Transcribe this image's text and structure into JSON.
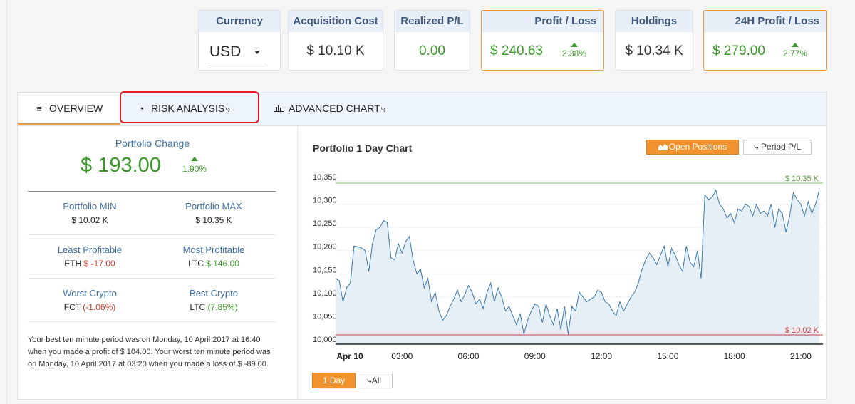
{
  "stats": {
    "currency": {
      "label": "Currency",
      "value": "USD"
    },
    "acquisition_cost": {
      "label": "Acquisition Cost",
      "value": "$ 10.10 K"
    },
    "realized_pl": {
      "label": "Realized P/L",
      "value": "0.00"
    },
    "profit_loss": {
      "label": "Profit / Loss",
      "value": "$ 240.63",
      "pct": "2.38%"
    },
    "holdings": {
      "label": "Holdings",
      "value": "$ 10.34 K"
    },
    "profit_loss_24h": {
      "label": "24H Profit / Loss",
      "value": "$ 279.00",
      "pct": "2.77%"
    }
  },
  "tabs": {
    "overview": "OVERVIEW",
    "risk": "RISK ANALYSIS",
    "advanced": "ADVANCED CHART"
  },
  "overview": {
    "change_label": "Portfolio Change",
    "change_value": "$ 193.00",
    "change_pct": "1.90%",
    "min_label": "Portfolio MIN",
    "min_value": "$ 10.02 K",
    "max_label": "Portfolio MAX",
    "max_value": "$ 10.35 K",
    "least_label": "Least Profitable",
    "least_coin": "ETH",
    "least_value": "$ -17.00",
    "most_label": "Most Profitable",
    "most_coin": "LTC",
    "most_value": "$ 146.00",
    "worst_label": "Worst Crypto",
    "worst_coin": "FCT",
    "worst_value": "(-1.06%)",
    "best_label": "Best Crypto",
    "best_coin": "LTC",
    "best_value": "(7.85%)",
    "summary": "Your best ten minute period was on Monday, 10 April 2017 at 16:40 when you made a profit of $ 104.00. Your worst ten minute period was on Monday, 10 April 2017 at 03:20 when you made a loss of $ -89.00."
  },
  "chart": {
    "title": "Portfolio 1 Day Chart",
    "open_positions": "Open Positions",
    "period_pl": "Period P/L",
    "range_1day": "1 Day",
    "range_all": "All"
  },
  "chart_data": {
    "type": "area",
    "title": "Portfolio 1 Day Chart",
    "x_tick_labels": [
      "Apr 10",
      "03:00",
      "06:00",
      "09:00",
      "12:00",
      "15:00",
      "18:00",
      "21:00"
    ],
    "y_tick_labels": [
      "10,000",
      "10,050",
      "10,100",
      "10,150",
      "10,200",
      "10,250",
      "10,300",
      "10,350"
    ],
    "ylim": [
      10000,
      10350
    ],
    "xlim_hours": [
      0,
      22
    ],
    "max_line": {
      "value": 10350,
      "label": "$ 10.35 K",
      "color": "#8cc67a"
    },
    "min_line": {
      "value": 10020,
      "label": "$ 10.02 K",
      "color": "#c0473a"
    },
    "line_color": "#3a78ad",
    "fill_color": "#e6eef6",
    "series": [
      {
        "name": "Portfolio value",
        "x_hours": [
          0,
          0.1667,
          0.3333,
          0.5,
          0.6667,
          0.8333,
          1,
          1.1667,
          1.3333,
          1.5,
          1.6667,
          1.8333,
          2,
          2.1667,
          2.3333,
          2.5,
          2.6667,
          2.8333,
          3,
          3.1667,
          3.3333,
          3.5,
          3.6667,
          3.8333,
          4,
          4.1667,
          4.3333,
          4.5,
          4.6667,
          4.8333,
          5,
          5.1667,
          5.3333,
          5.5,
          5.6667,
          5.8333,
          6,
          6.1667,
          6.3333,
          6.5,
          6.6667,
          6.8333,
          7,
          7.1667,
          7.3333,
          7.5,
          7.6667,
          7.8333,
          8,
          8.1667,
          8.3333,
          8.5,
          8.6667,
          8.8333,
          9,
          9.1667,
          9.3333,
          9.5,
          9.6667,
          9.8333,
          10,
          10.1667,
          10.3333,
          10.5,
          10.6667,
          10.8333,
          11,
          11.1667,
          11.3333,
          11.5,
          11.6667,
          11.8333,
          12,
          12.1667,
          12.3333,
          12.5,
          12.6667,
          12.8333,
          13,
          13.1667,
          13.3333,
          13.5,
          13.6667,
          13.8333,
          14,
          14.1667,
          14.3333,
          14.5,
          14.6667,
          14.8333,
          15,
          15.1667,
          15.3333,
          15.5,
          15.6667,
          15.8333,
          16,
          16.1667,
          16.3333,
          16.5,
          16.6667,
          16.8333,
          17,
          17.1667,
          17.3333,
          17.5,
          17.6667,
          17.8333,
          18,
          18.1667,
          18.3333,
          18.5,
          18.6667,
          18.8333,
          19,
          19.1667,
          19.3333,
          19.5,
          19.6667,
          19.8333,
          20,
          20.1667,
          20.3333,
          20.5,
          20.6667,
          20.8333,
          21,
          21.1667,
          21.3333,
          21.5,
          21.6667,
          21.8333
        ],
        "values": [
          10140,
          10135,
          10090,
          10120,
          10130,
          10210,
          10208,
          10206,
          10200,
          10155,
          10215,
          10245,
          10250,
          10265,
          10260,
          10185,
          10180,
          10215,
          10195,
          10220,
          10230,
          10180,
          10150,
          10160,
          10120,
          10140,
          10090,
          10110,
          10070,
          10050,
          10060,
          10080,
          10095,
          10115,
          10090,
          10105,
          10125,
          10110,
          10085,
          10095,
          10075,
          10110,
          10130,
          10090,
          10120,
          10100,
          10070,
          10080,
          10060,
          10040,
          10065,
          10020,
          10050,
          10070,
          10085,
          10080,
          10045,
          10085,
          10060,
          10040,
          10075,
          10030,
          10080,
          10020,
          10080,
          10070,
          10110,
          10100,
          10090,
          10095,
          10100,
          10115,
          10110,
          10090,
          10085,
          10070,
          10060,
          10090,
          10070,
          10085,
          10100,
          10110,
          10130,
          10160,
          10180,
          10195,
          10185,
          10170,
          10190,
          10210,
          10165,
          10205,
          10190,
          10170,
          10155,
          10210,
          10175,
          10165,
          10200,
          10140,
          10320,
          10310,
          10315,
          10330,
          10300,
          10290,
          10270,
          10280,
          10260,
          10290,
          10285,
          10300,
          10295,
          10275,
          10300,
          10280,
          10285,
          10275,
          10300,
          10250,
          10290,
          10280,
          10240,
          10275,
          10325,
          10310,
          10300,
          10275,
          10305,
          10280,
          10300,
          10330
        ]
      }
    ]
  }
}
